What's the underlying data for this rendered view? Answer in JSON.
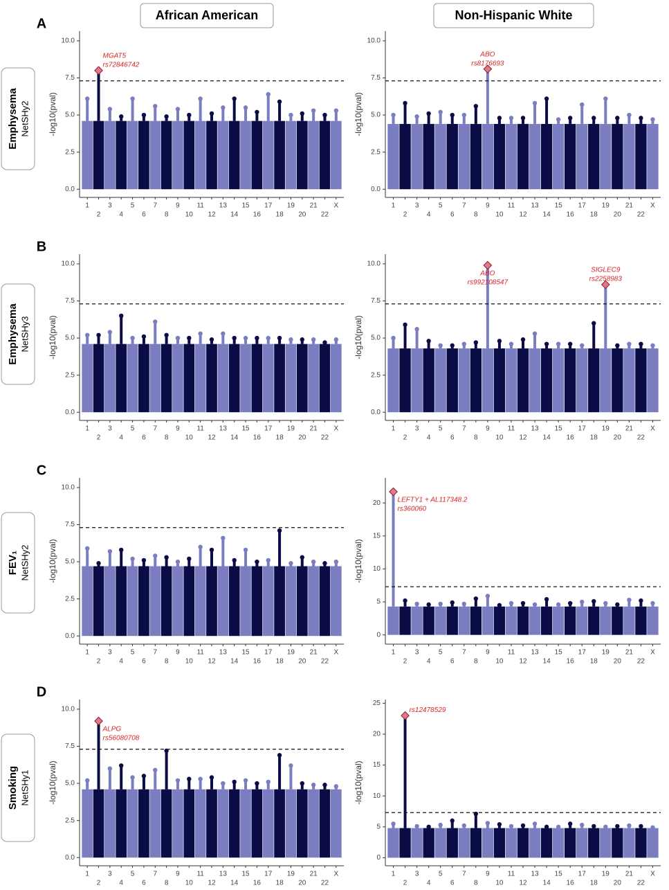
{
  "columns": [
    "African American",
    "Non-Hispanic White"
  ],
  "rows": [
    {
      "panel": "A",
      "title": "Emphysema",
      "subtitle": "NetSHy2"
    },
    {
      "panel": "B",
      "title": "Emphysema",
      "subtitle": "NetSHy3"
    },
    {
      "panel": "C",
      "title": "FEV₁",
      "subtitle": "NetSHy2"
    },
    {
      "panel": "D",
      "title": "Smoking",
      "subtitle": "NetSHy1"
    }
  ],
  "chart_data": [
    {
      "type": "manhattan",
      "ylabel": "-log10(pval)",
      "ylim": [
        -0.55,
        10.65
      ],
      "yticks": [
        {
          "value": 0,
          "label": "0.0"
        },
        {
          "value": 2.5,
          "label": "2.5"
        },
        {
          "value": 5,
          "label": "5.0"
        },
        {
          "value": 7.5,
          "label": "7.5"
        },
        {
          "value": 10,
          "label": "10.0"
        }
      ],
      "threshold": 7.3,
      "bulk": 4.6,
      "colors": [
        "#7a7dbf",
        "#0b0b45"
      ],
      "categories": [
        "1",
        "2",
        "3",
        "4",
        "5",
        "6",
        "7",
        "8",
        "9",
        "10",
        "11",
        "12",
        "13",
        "14",
        "15",
        "16",
        "17",
        "18",
        "19",
        "20",
        "21",
        "22",
        "X"
      ],
      "values": [
        6.1,
        8.0,
        5.4,
        4.9,
        6.1,
        5.0,
        5.6,
        4.9,
        5.4,
        5.0,
        6.1,
        5.1,
        5.5,
        6.1,
        5.5,
        5.2,
        6.4,
        5.9,
        5.0,
        5.1,
        5.3,
        5.0,
        5.3
      ],
      "annotations": [
        {
          "lines": [
            "MGAT5",
            "rs72846742"
          ],
          "category": "2",
          "value": 8.0
        }
      ]
    },
    {
      "type": "manhattan",
      "ylabel": "-log10(pval)",
      "ylim": [
        -0.55,
        10.65
      ],
      "yticks": [
        {
          "value": 0,
          "label": "0.0"
        },
        {
          "value": 2.5,
          "label": "2.5"
        },
        {
          "value": 5,
          "label": "5.0"
        },
        {
          "value": 7.5,
          "label": "7.5"
        },
        {
          "value": 10,
          "label": "10.0"
        }
      ],
      "threshold": 7.3,
      "bulk": 4.4,
      "colors": [
        "#7a7dbf",
        "#0b0b45"
      ],
      "categories": [
        "1",
        "2",
        "3",
        "4",
        "5",
        "6",
        "7",
        "8",
        "9",
        "10",
        "11",
        "12",
        "13",
        "14",
        "15",
        "16",
        "17",
        "18",
        "19",
        "20",
        "21",
        "22",
        "X"
      ],
      "values": [
        5.0,
        5.8,
        4.9,
        5.1,
        5.2,
        5.0,
        5.0,
        5.6,
        8.1,
        4.8,
        4.8,
        4.8,
        5.8,
        6.1,
        4.7,
        4.8,
        5.7,
        4.8,
        6.1,
        4.8,
        5.0,
        4.8,
        4.7
      ],
      "annotations": [
        {
          "lines": [
            "ABO",
            "rs8176693"
          ],
          "category": "9",
          "value": 8.1
        }
      ]
    },
    {
      "type": "manhattan",
      "ylabel": "-log10(pval)",
      "ylim": [
        -0.55,
        10.65
      ],
      "yticks": [
        {
          "value": 0,
          "label": "0.0"
        },
        {
          "value": 2.5,
          "label": "2.5"
        },
        {
          "value": 5,
          "label": "5.0"
        },
        {
          "value": 7.5,
          "label": "7.5"
        },
        {
          "value": 10,
          "label": "10.0"
        }
      ],
      "threshold": 7.3,
      "bulk": 4.6,
      "colors": [
        "#7a7dbf",
        "#0b0b45"
      ],
      "categories": [
        "1",
        "2",
        "3",
        "4",
        "5",
        "6",
        "7",
        "8",
        "9",
        "10",
        "11",
        "12",
        "13",
        "14",
        "15",
        "16",
        "17",
        "18",
        "19",
        "20",
        "21",
        "22",
        "X"
      ],
      "values": [
        5.2,
        5.2,
        5.4,
        6.5,
        5.0,
        5.1,
        6.1,
        5.2,
        5.0,
        5.0,
        5.3,
        4.9,
        5.3,
        5.0,
        5.0,
        5.0,
        5.0,
        5.0,
        4.9,
        4.9,
        4.9,
        4.7,
        4.9
      ],
      "annotations": []
    },
    {
      "type": "manhattan",
      "ylabel": "-log10(pval)",
      "ylim": [
        -0.55,
        10.65
      ],
      "yticks": [
        {
          "value": 0,
          "label": "0.0"
        },
        {
          "value": 2.5,
          "label": "2.5"
        },
        {
          "value": 5,
          "label": "5.0"
        },
        {
          "value": 7.5,
          "label": "7.5"
        },
        {
          "value": 10,
          "label": "10.0"
        }
      ],
      "threshold": 7.3,
      "bulk": 4.3,
      "colors": [
        "#7a7dbf",
        "#0b0b45"
      ],
      "categories": [
        "1",
        "2",
        "3",
        "4",
        "5",
        "6",
        "7",
        "8",
        "9",
        "10",
        "11",
        "12",
        "13",
        "14",
        "15",
        "16",
        "17",
        "18",
        "19",
        "20",
        "21",
        "22",
        "X"
      ],
      "values": [
        5.0,
        5.9,
        5.6,
        4.8,
        4.5,
        4.5,
        4.6,
        4.7,
        9.9,
        4.8,
        4.6,
        4.9,
        5.3,
        4.6,
        4.6,
        4.6,
        4.5,
        6.0,
        8.6,
        4.5,
        4.6,
        4.6,
        4.5
      ],
      "annotations": [
        {
          "lines": [
            "ABO",
            "rs992108547"
          ],
          "category": "9",
          "value": 9.9
        },
        {
          "lines": [
            "SIGLEC9",
            "rs2258983"
          ],
          "category": "19",
          "value": 8.6
        }
      ]
    },
    {
      "type": "manhattan",
      "ylabel": "-log10(pval)",
      "ylim": [
        -0.55,
        10.65
      ],
      "yticks": [
        {
          "value": 0,
          "label": "0.0"
        },
        {
          "value": 2.5,
          "label": "2.5"
        },
        {
          "value": 5,
          "label": "5.0"
        },
        {
          "value": 7.5,
          "label": "7.5"
        },
        {
          "value": 10,
          "label": "10.0"
        }
      ],
      "threshold": 7.3,
      "bulk": 4.7,
      "colors": [
        "#7a7dbf",
        "#0b0b45"
      ],
      "categories": [
        "1",
        "2",
        "3",
        "4",
        "5",
        "6",
        "7",
        "8",
        "9",
        "10",
        "11",
        "12",
        "13",
        "14",
        "15",
        "16",
        "17",
        "18",
        "19",
        "20",
        "21",
        "22",
        "X"
      ],
      "values": [
        5.9,
        4.9,
        5.7,
        5.8,
        5.2,
        5.1,
        5.4,
        5.3,
        5.0,
        5.2,
        6.0,
        5.8,
        6.6,
        5.1,
        5.8,
        5.0,
        5.1,
        7.1,
        4.9,
        5.3,
        5.0,
        4.9,
        5.0
      ],
      "annotations": []
    },
    {
      "type": "manhattan",
      "ylabel": "-log10(pval)",
      "ylim": [
        -1.4,
        23.8
      ],
      "yticks": [
        0,
        5,
        10,
        15,
        20
      ],
      "threshold": 7.3,
      "bulk": 4.3,
      "colors": [
        "#7a7dbf",
        "#0b0b45"
      ],
      "categories": [
        "1",
        "2",
        "3",
        "4",
        "5",
        "6",
        "7",
        "8",
        "9",
        "10",
        "11",
        "12",
        "13",
        "14",
        "15",
        "16",
        "17",
        "18",
        "19",
        "20",
        "21",
        "22",
        "X"
      ],
      "values": [
        21.7,
        5.2,
        4.7,
        4.6,
        4.7,
        4.9,
        4.7,
        5.5,
        5.9,
        4.5,
        4.8,
        4.8,
        4.6,
        5.4,
        4.6,
        4.8,
        5.0,
        5.1,
        4.8,
        4.6,
        5.3,
        5.2,
        4.8
      ],
      "annotations": [
        {
          "lines": [
            "LEFTY1 + AL117348.2",
            "rs360060"
          ],
          "category": "1",
          "value": 21.7
        }
      ]
    },
    {
      "type": "manhattan",
      "ylabel": "-log10(pval)",
      "ylim": [
        -0.55,
        10.65
      ],
      "yticks": [
        {
          "value": 0,
          "label": "0.0"
        },
        {
          "value": 2.5,
          "label": "2.5"
        },
        {
          "value": 5,
          "label": "5.0"
        },
        {
          "value": 7.5,
          "label": "7.5"
        },
        {
          "value": 10,
          "label": "10.0"
        }
      ],
      "threshold": 7.3,
      "bulk": 4.6,
      "colors": [
        "#7a7dbf",
        "#0b0b45"
      ],
      "categories": [
        "1",
        "2",
        "3",
        "4",
        "5",
        "6",
        "7",
        "8",
        "9",
        "10",
        "11",
        "12",
        "13",
        "14",
        "15",
        "16",
        "17",
        "18",
        "19",
        "20",
        "21",
        "22",
        "X"
      ],
      "values": [
        5.2,
        9.2,
        6.0,
        6.2,
        5.4,
        5.5,
        5.9,
        7.2,
        5.2,
        5.3,
        5.3,
        5.4,
        5.0,
        5.1,
        5.2,
        5.0,
        5.1,
        6.9,
        6.2,
        5.0,
        4.9,
        4.9,
        4.8
      ],
      "annotations": [
        {
          "lines": [
            "ALPG",
            "rs56080708"
          ],
          "category": "2",
          "value": 9.2
        }
      ]
    },
    {
      "type": "manhattan",
      "ylabel": "-log10(pval)",
      "ylim": [
        -1.3,
        25.6
      ],
      "yticks": [
        0,
        5,
        10,
        15,
        20,
        25
      ],
      "threshold": 7.3,
      "bulk": 4.8,
      "colors": [
        "#7a7dbf",
        "#0b0b45"
      ],
      "categories": [
        "1",
        "2",
        "3",
        "4",
        "5",
        "6",
        "7",
        "8",
        "9",
        "10",
        "11",
        "12",
        "13",
        "14",
        "15",
        "16",
        "17",
        "18",
        "19",
        "20",
        "21",
        "22",
        "X"
      ],
      "values": [
        5.5,
        23.0,
        5.1,
        5.0,
        5.3,
        6.0,
        5.2,
        7.1,
        5.6,
        5.4,
        5.1,
        5.2,
        5.5,
        5.0,
        5.0,
        5.5,
        5.3,
        5.1,
        5.0,
        5.1,
        5.2,
        5.1,
        4.9
      ],
      "annotations": [
        {
          "lines": [
            "rs12478529"
          ],
          "category": "2",
          "value": 23.0
        }
      ]
    }
  ]
}
